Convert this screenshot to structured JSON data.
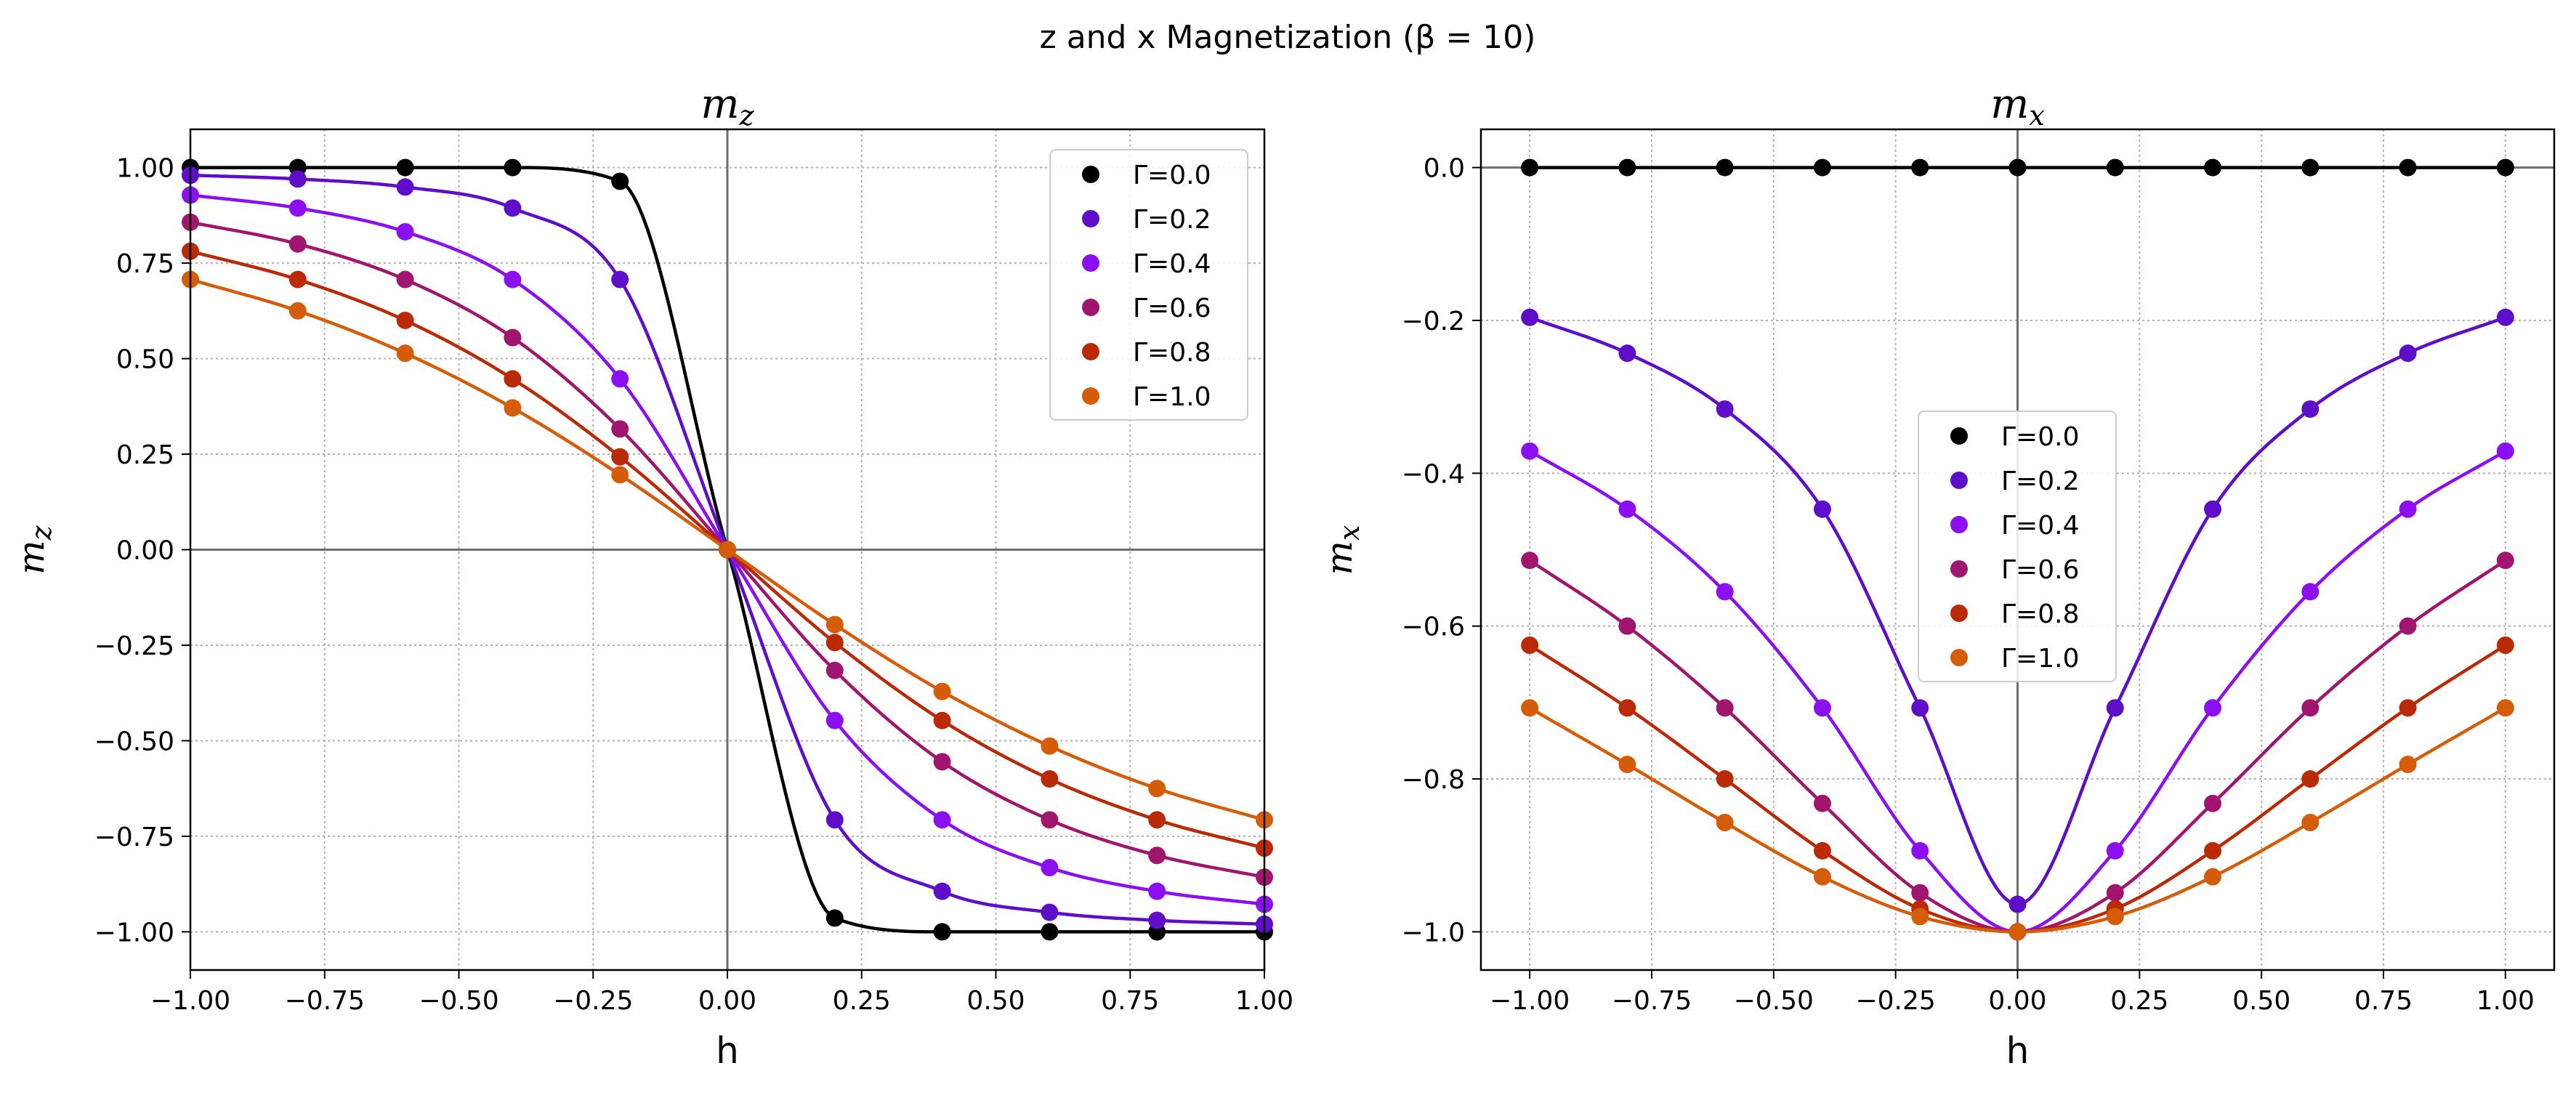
{
  "figure_title": "z and x Magnetization (β = 10)",
  "chart_data": [
    {
      "type": "line",
      "title": "m_z",
      "xlabel": "h",
      "ylabel": "m_z",
      "xlim": [
        -1.0,
        1.0
      ],
      "ylim": [
        -1.1,
        1.1
      ],
      "xticks": [
        "−1.00",
        "−0.75",
        "−0.50",
        "−0.25",
        "0.00",
        "0.25",
        "0.50",
        "0.75",
        "1.00"
      ],
      "yticks": [
        "−1.00",
        "−0.75",
        "−0.50",
        "−0.25",
        "0.00",
        "0.25",
        "0.50",
        "0.75",
        "1.00"
      ],
      "grid": true,
      "legend_position": "upper right",
      "marker_x": [
        -1.0,
        -0.8,
        -0.6,
        -0.4,
        -0.2,
        0.0,
        0.2,
        0.4,
        0.6,
        0.8,
        1.0
      ],
      "series": [
        {
          "name": "Γ=0.0",
          "color": "#000000",
          "values": [
            1.0,
            1.0,
            1.0,
            1.0,
            0.964,
            0.0,
            -0.964,
            -1.0,
            -1.0,
            -1.0,
            -1.0
          ]
        },
        {
          "name": "Γ=0.2",
          "color": "#5e0dc8",
          "values": [
            0.98,
            0.97,
            0.949,
            0.894,
            0.707,
            0.0,
            -0.707,
            -0.894,
            -0.949,
            -0.97,
            -0.98
          ]
        },
        {
          "name": "Γ=0.4",
          "color": "#8b0ff0",
          "values": [
            0.928,
            0.894,
            0.832,
            0.707,
            0.447,
            0.0,
            -0.447,
            -0.707,
            -0.832,
            -0.894,
            -0.928
          ]
        },
        {
          "name": "Γ=0.6",
          "color": "#a0166e",
          "values": [
            0.857,
            0.8,
            0.707,
            0.555,
            0.316,
            0.0,
            -0.316,
            -0.555,
            -0.707,
            -0.8,
            -0.857
          ]
        },
        {
          "name": "Γ=0.8",
          "color": "#bb2a06",
          "values": [
            0.781,
            0.707,
            0.6,
            0.447,
            0.243,
            0.0,
            -0.243,
            -0.447,
            -0.6,
            -0.707,
            -0.781
          ]
        },
        {
          "name": "Γ=1.0",
          "color": "#d55c08",
          "values": [
            0.707,
            0.625,
            0.514,
            0.371,
            0.196,
            0.0,
            -0.196,
            -0.371,
            -0.514,
            -0.625,
            -0.707
          ]
        }
      ]
    },
    {
      "type": "line",
      "title": "m_x",
      "xlabel": "h",
      "ylabel": "m_x",
      "xlim": [
        -1.1,
        1.1
      ],
      "ylim": [
        -1.05,
        0.05
      ],
      "xticks": [
        "−1.00",
        "−0.75",
        "−0.50",
        "−0.25",
        "0.00",
        "0.25",
        "0.50",
        "0.75",
        "1.00"
      ],
      "yticks": [
        "−1.0",
        "−0.8",
        "−0.6",
        "−0.4",
        "−0.2",
        "0.0"
      ],
      "grid": true,
      "legend_position": "center",
      "marker_x": [
        -1.0,
        -0.8,
        -0.6,
        -0.4,
        -0.2,
        0.0,
        0.2,
        0.4,
        0.6,
        0.8,
        1.0
      ],
      "series": [
        {
          "name": "Γ=0.0",
          "color": "#000000",
          "values": [
            0.0,
            0.0,
            0.0,
            0.0,
            0.0,
            0.0,
            0.0,
            0.0,
            0.0,
            0.0,
            0.0
          ]
        },
        {
          "name": "Γ=0.2",
          "color": "#5e0dc8",
          "values": [
            -0.196,
            -0.243,
            -0.316,
            -0.447,
            -0.707,
            -0.964,
            -0.707,
            -0.447,
            -0.316,
            -0.243,
            -0.196
          ]
        },
        {
          "name": "Γ=0.4",
          "color": "#8b0ff0",
          "values": [
            -0.371,
            -0.447,
            -0.555,
            -0.707,
            -0.894,
            -1.0,
            -0.894,
            -0.707,
            -0.555,
            -0.447,
            -0.371
          ]
        },
        {
          "name": "Γ=0.6",
          "color": "#a0166e",
          "values": [
            -0.514,
            -0.6,
            -0.707,
            -0.832,
            -0.949,
            -1.0,
            -0.949,
            -0.832,
            -0.707,
            -0.6,
            -0.514
          ]
        },
        {
          "name": "Γ=0.8",
          "color": "#bb2a06",
          "values": [
            -0.625,
            -0.707,
            -0.8,
            -0.894,
            -0.97,
            -1.0,
            -0.97,
            -0.894,
            -0.8,
            -0.707,
            -0.625
          ]
        },
        {
          "name": "Γ=1.0",
          "color": "#d55c08",
          "values": [
            -0.707,
            -0.781,
            -0.857,
            -0.928,
            -0.98,
            -1.0,
            -0.98,
            -0.928,
            -0.857,
            -0.781,
            -0.707
          ]
        }
      ]
    }
  ]
}
